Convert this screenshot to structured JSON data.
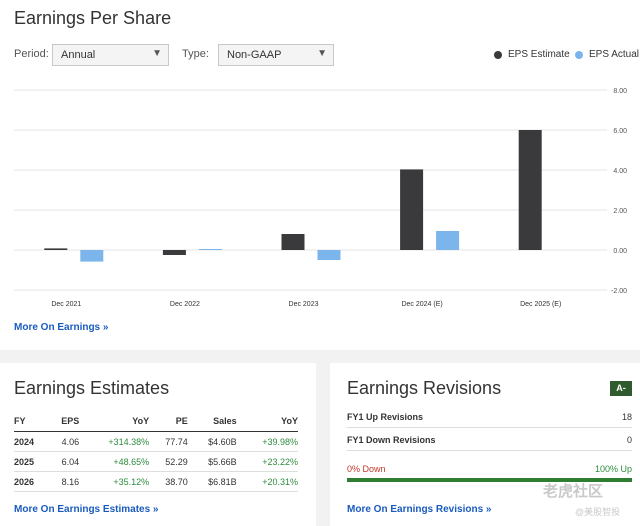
{
  "header": {
    "title": "Earnings Per Share"
  },
  "controls": {
    "period_label": "Period:",
    "period_value": "Annual",
    "type_label": "Type:",
    "type_value": "Non-GAAP"
  },
  "legend": {
    "estimate": "EPS Estimate",
    "actual": "EPS Actual",
    "estimate_color": "#3a3a3c",
    "actual_color": "#7cb5ec"
  },
  "chart_data": {
    "type": "bar",
    "categories": [
      "Dec 2021",
      "Dec 2022",
      "Dec 2023",
      "Dec 2024 (E)",
      "Dec 2025 (E)"
    ],
    "series": [
      {
        "name": "EPS Estimate",
        "values": [
          0.08,
          -0.25,
          0.8,
          4.03,
          6.0
        ]
      },
      {
        "name": "EPS Actual",
        "values": [
          -0.58,
          0.05,
          -0.5,
          0.95,
          null
        ]
      }
    ],
    "ylim": [
      -2,
      8
    ],
    "yticks": [
      "8.00",
      "6.00",
      "4.00",
      "2.00",
      "0.00",
      "-2.00"
    ],
    "grid": true,
    "legend_position": "top-right"
  },
  "links": {
    "more_earnings": "More On Earnings »",
    "more_estimates": "More On Earnings Estimates »",
    "more_revisions": "More On Earnings Revisions »"
  },
  "estimates": {
    "title": "Earnings Estimates",
    "columns": [
      "FY",
      "EPS",
      "YoY",
      "PE",
      "Sales",
      "YoY"
    ],
    "rows": [
      [
        "2024",
        "4.06",
        "+314.38%",
        "77.74",
        "$4.60B",
        "+39.98%"
      ],
      [
        "2025",
        "6.04",
        "+48.65%",
        "52.29",
        "$5.66B",
        "+23.22%"
      ],
      [
        "2026",
        "8.16",
        "+35.12%",
        "38.70",
        "$6.81B",
        "+20.31%"
      ]
    ]
  },
  "revisions": {
    "title": "Earnings Revisions",
    "grade": "A-",
    "up_label": "FY1 Up Revisions",
    "up_value": "18",
    "down_label": "FY1 Down Revisions",
    "down_value": "0",
    "down_pct": "0% Down",
    "up_pct": "100% Up",
    "up_fraction": 1.0
  },
  "watermark": {
    "main": "老虎社区",
    "sub": "@美股智投"
  }
}
